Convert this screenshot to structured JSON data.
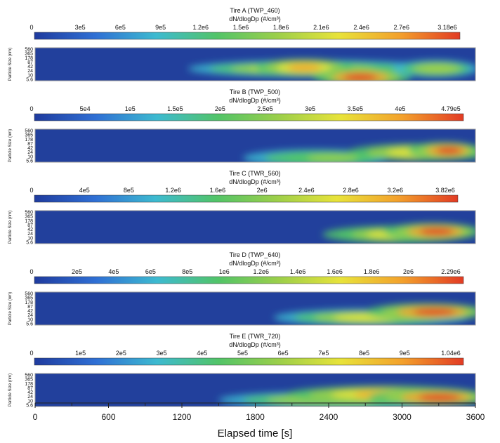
{
  "chart_data": {
    "type": "heatmap",
    "x": {
      "label": "Elapsed time [s]",
      "range": [
        0,
        3600
      ],
      "ticks": [
        "0",
        "600",
        "1200",
        "1800",
        "2400",
        "3000",
        "3600"
      ],
      "tick_values": [
        0,
        600,
        1200,
        1800,
        2400,
        3000,
        3600
      ]
    },
    "y": {
      "label": "Particle Size (nm)",
      "ticks": [
        "560",
        "365",
        "178",
        "87",
        "42",
        "24",
        "10",
        "5.6"
      ],
      "scale": "log"
    },
    "colormap": [
      "#1f3b9e",
      "#2f6fd4",
      "#3dbad0",
      "#52c468",
      "#9ccf4a",
      "#e8e33a",
      "#f3a12c",
      "#e23b24"
    ],
    "panels": [
      {
        "title": "Tire A (TWP_460)",
        "cbar_label": "dN/dlogDp (#/cm³)",
        "cbar_ticks": [
          "0",
          "3e5",
          "6e5",
          "9e5",
          "1.2e6",
          "1.5e6",
          "1.8e6",
          "2.1e6",
          "2.4e6",
          "2.7e6",
          "3.18e6"
        ],
        "cbar_max": 3180000,
        "blobs": [
          {
            "t0": 1500,
            "t1": 3600,
            "peak": 2050,
            "size": 30,
            "intensity": 0.55
          },
          {
            "t0": 1800,
            "t1": 2600,
            "peak": 2200,
            "size": 35,
            "intensity": 0.8
          },
          {
            "t0": 2300,
            "t1": 3100,
            "peak": 2650,
            "size": 9,
            "intensity": 1.0
          },
          {
            "t0": 2900,
            "t1": 3600,
            "peak": 3300,
            "size": 30,
            "intensity": 0.5
          }
        ]
      },
      {
        "title": "Tire B (TWP_500)",
        "cbar_label": "dN/dlogDp (#/cm³)",
        "cbar_ticks": [
          "0",
          "5e4",
          "1e5",
          "1.5e5",
          "2e5",
          "2.5e5",
          "3e5",
          "3.5e5",
          "4e5",
          "4.79e5"
        ],
        "cbar_max": 479000,
        "blobs": [
          {
            "t0": 1500,
            "t1": 2700,
            "peak": 2500,
            "size": 10,
            "intensity": 0.35
          },
          {
            "t0": 2400,
            "t1": 3600,
            "peak": 3300,
            "size": 22,
            "intensity": 0.7
          },
          {
            "t0": 3000,
            "t1": 3600,
            "peak": 3400,
            "size": 28,
            "intensity": 1.0
          }
        ]
      },
      {
        "title": "Tire C (TWR_560)",
        "cbar_label": "dN/dlogDp (#/cm³)",
        "cbar_ticks": [
          "0",
          "4e5",
          "8e5",
          "1.2e6",
          "1.6e6",
          "2e6",
          "2.4e6",
          "2.8e6",
          "3.2e6",
          "3.82e6"
        ],
        "cbar_max": 3820000,
        "blobs": [
          {
            "t0": 2400,
            "t1": 3600,
            "peak": 2900,
            "size": 20,
            "intensity": 0.65
          },
          {
            "t0": 2800,
            "t1": 3600,
            "peak": 3300,
            "size": 30,
            "intensity": 1.0
          }
        ]
      },
      {
        "title": "Tire D (TWP_640)",
        "cbar_label": "dN/dlogDp (#/cm³)",
        "cbar_ticks": [
          "0",
          "2e5",
          "4e5",
          "6e5",
          "8e5",
          "1e6",
          "1.2e6",
          "1.4e6",
          "1.6e6",
          "1.8e6",
          "2e6",
          "2.29e6"
        ],
        "cbar_max": 2290000,
        "blobs": [
          {
            "t0": 2000,
            "t1": 3600,
            "peak": 2700,
            "size": 16,
            "intensity": 0.55
          },
          {
            "t0": 2600,
            "t1": 3600,
            "peak": 3300,
            "size": 35,
            "intensity": 1.0
          }
        ]
      },
      {
        "title": "Tire E (TWR_720)",
        "cbar_label": "dN/dlogDp (#/cm³)",
        "cbar_ticks": [
          "0",
          "1e5",
          "2e5",
          "3e5",
          "4e5",
          "5e5",
          "6e5",
          "7e5",
          "8e5",
          "9e5",
          "1.04e6"
        ],
        "cbar_max": 1040000,
        "blobs": [
          {
            "t0": 1600,
            "t1": 3600,
            "peak": 2400,
            "size": 14,
            "intensity": 0.5
          },
          {
            "t0": 2000,
            "t1": 3600,
            "peak": 2900,
            "size": 30,
            "intensity": 0.8
          },
          {
            "t0": 2600,
            "t1": 3600,
            "peak": 3350,
            "size": 20,
            "intensity": 1.0
          }
        ]
      }
    ]
  }
}
